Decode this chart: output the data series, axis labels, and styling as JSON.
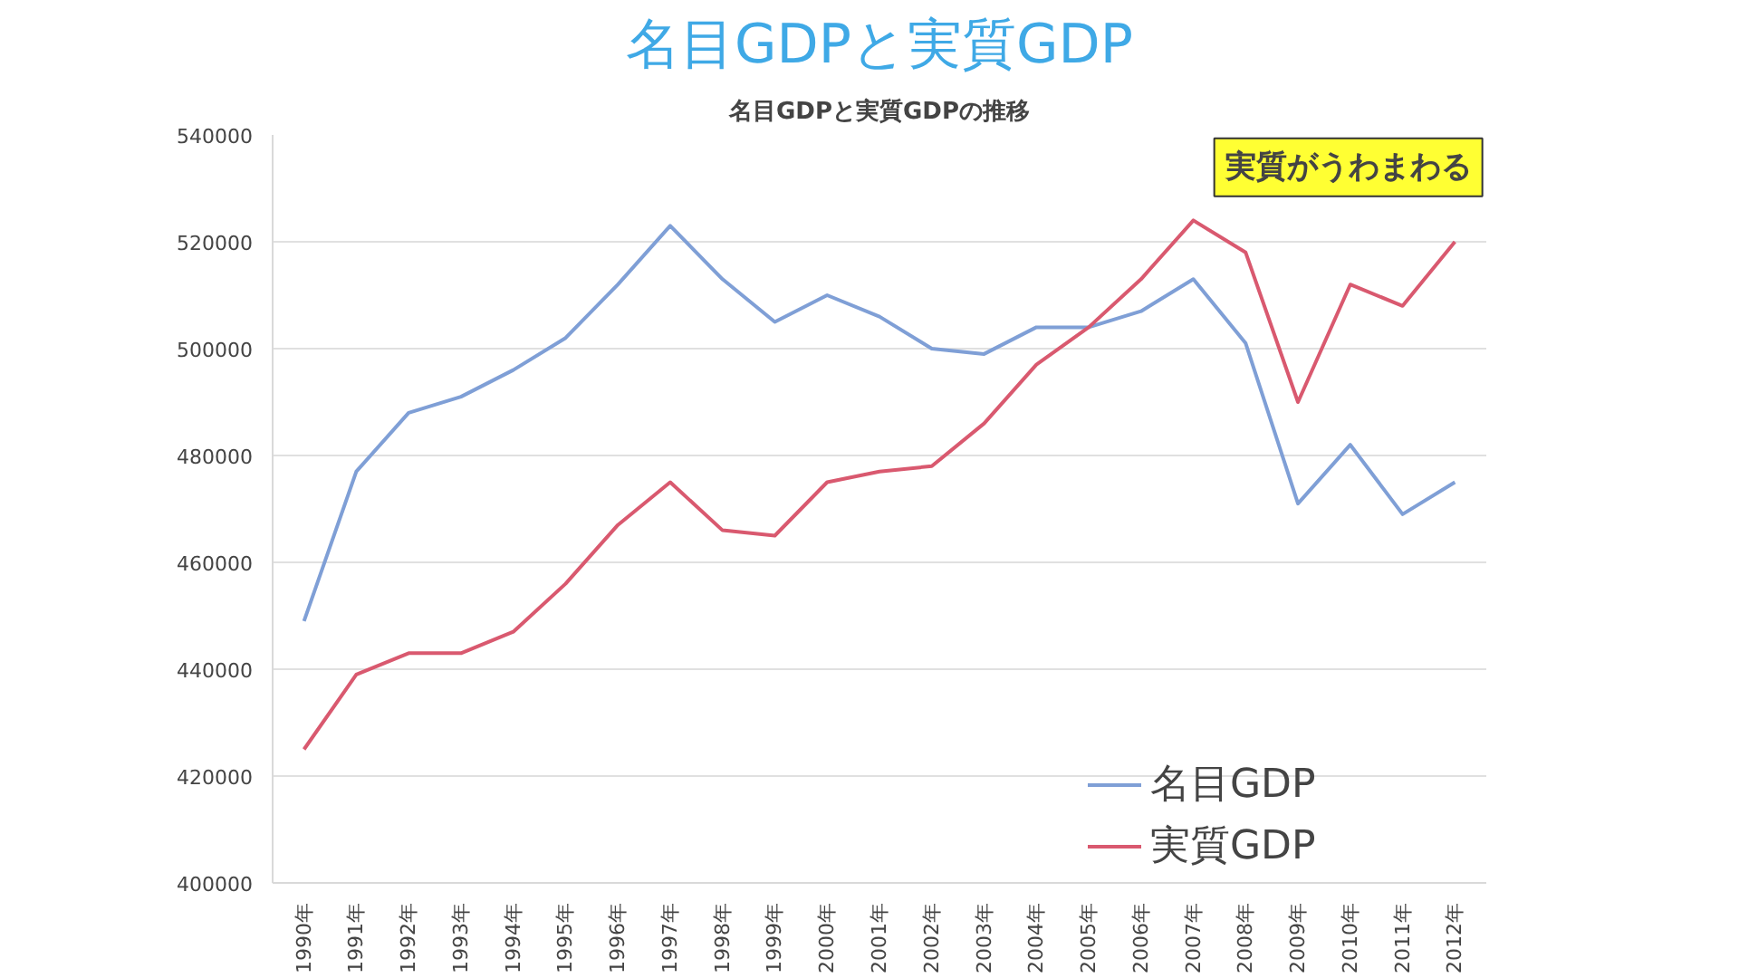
{
  "chart_data": {
    "type": "line",
    "title": "名目GDPと実質GDP",
    "subtitle": "名目GDPと実質GDPの推移",
    "categories": [
      "1990年",
      "1991年",
      "1992年",
      "1993年",
      "1994年",
      "1995年",
      "1996年",
      "1997年",
      "1998年",
      "1999年",
      "2000年",
      "2001年",
      "2002年",
      "2003年",
      "2004年",
      "2005年",
      "2006年",
      "2007年",
      "2008年",
      "2009年",
      "2010年",
      "2011年",
      "2012年"
    ],
    "series": [
      {
        "name": "名目GDP",
        "color": "#7f9fd6",
        "values": [
          449000,
          477000,
          488000,
          491000,
          496000,
          502000,
          512000,
          523000,
          513000,
          505000,
          510000,
          506000,
          500000,
          499000,
          504000,
          504000,
          507000,
          513000,
          501000,
          471000,
          482000,
          469000,
          475000
        ]
      },
      {
        "name": "実質GDP",
        "color": "#d9596f",
        "values": [
          425000,
          439000,
          443000,
          443000,
          447000,
          456000,
          467000,
          475000,
          466000,
          465000,
          475000,
          477000,
          478000,
          486000,
          497000,
          504000,
          513000,
          524000,
          518000,
          490000,
          512000,
          508000,
          520000
        ]
      }
    ],
    "ylim": [
      400000,
      540000
    ],
    "yticks": [
      400000,
      420000,
      440000,
      460000,
      480000,
      500000,
      520000,
      540000
    ],
    "grid": "y",
    "legend": "bottom",
    "marker": "none",
    "line_style": "solid",
    "annotations": [
      "実質がうわまわる"
    ]
  }
}
